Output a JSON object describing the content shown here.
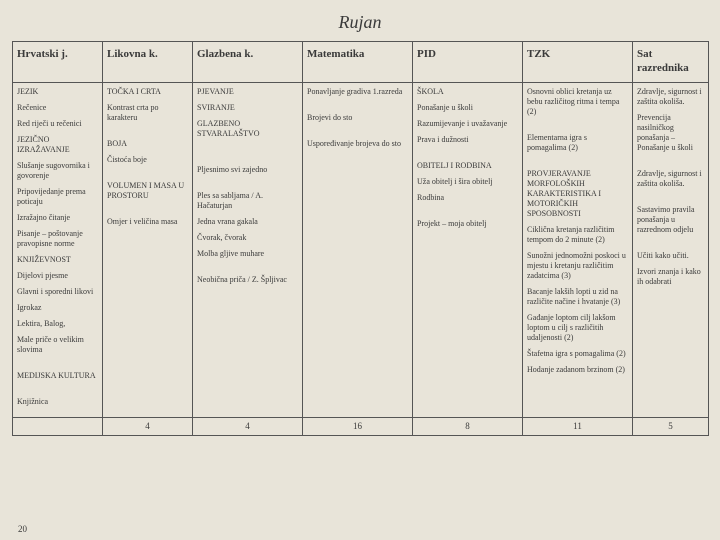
{
  "title": "Rujan",
  "page_number": "20",
  "headers": [
    "Hrvatski j.",
    "Likovna k.",
    "Glazbena k.",
    "Matematika",
    "PID",
    "TZK",
    "Sat razrednika"
  ],
  "col_widths": [
    "col0",
    "col1",
    "col2",
    "col3",
    "col4",
    "col5",
    "col6"
  ],
  "cells": {
    "c0": "JEZIK\nRečenice\nRed riječi u rečenici\nJEZIČNO IZRAŽAVANJE\nSlušanje sugovornika i govorenje\nPripovijedanje prema poticaju\nIzražajno čitanje\nPisanje – poštovanje pravopisne norme\nKNJIŽEVNOST\nDijelovi pjesme\nGlavni i sporedni likovi\nIgrokaz\nLektira, Balog,\nMale priče o velikim slovima\n\nMEDIJSKA KULTURA\n\nKnjižnica",
    "c1": "TOČKA I CRTA\nKontrast crta po karakteru\n\nBOJA\nČistoća boje\n\nVOLUMEN I MASA U PROSTORU\n\nOmjer i veličina masa",
    "c2": "PJEVANJE\nSVIRANJE\nGLAZBENO STVARALAŠTVO\n\n\nPljesnimo svi zajedno\n\nPles sa sabljama / A. Hačaturjan\nJedna vrana gakala\nČvorak, čvorak\nMolba gljive muhare\n\nNeobična priča / Z. Špljivac",
    "c3": "Ponavljanje gradiva 1.razreda\n\nBrojevi do sto\n\nUspoređivanje brojeva do sto",
    "c4": "ŠKOLA\nPonašanje u školi\nRazumijevanje i uvažavanje\nPrava i dužnosti\n\nOBITELJ I RODBINA\nUža obitelj i šira obitelj\nRodbina\n\nProjekt – moja obitelj",
    "c5": "Osnovni oblici kretanja uz bebu različitog ritma i tempa (2)\n\nElementarna igra s pomagalima (2)\n\nPROVJERAVANJE MORFOLOŠKIH KARAKTERISTIKA I MOTORIČKIH SPOSOBNOSTI\nCiklična kretanja različitim tempom do 2 minute (2)\nSunožni jednomožni poskoci u mjestu i kretanju različitim zadatcima (3)\nBacanje lakših lopti u zid na različite načine i hvatanje (3)\nGađanje loptom cilj lakšom loptom u cilj s različitih udaljenosti (2)\nŠtafetna igra s pomagalima (2)\nHodanje zadanom brzinom (2)",
    "c6": "Zdravlje, sigurnost i zaštita okoliša.\nPrevencija nasilničkog ponašanja – Ponašanje u školi\n\nZdravlje, sigurnost i zaštita okoliša.\n\nSastavimo pravila ponašanja u razrednom odjelu\n\nUčiti kako učiti.\nIzvori znanja i kako ih odabrati"
  },
  "numbers": [
    "",
    "4",
    "4",
    "16",
    "8",
    "11",
    "5"
  ]
}
